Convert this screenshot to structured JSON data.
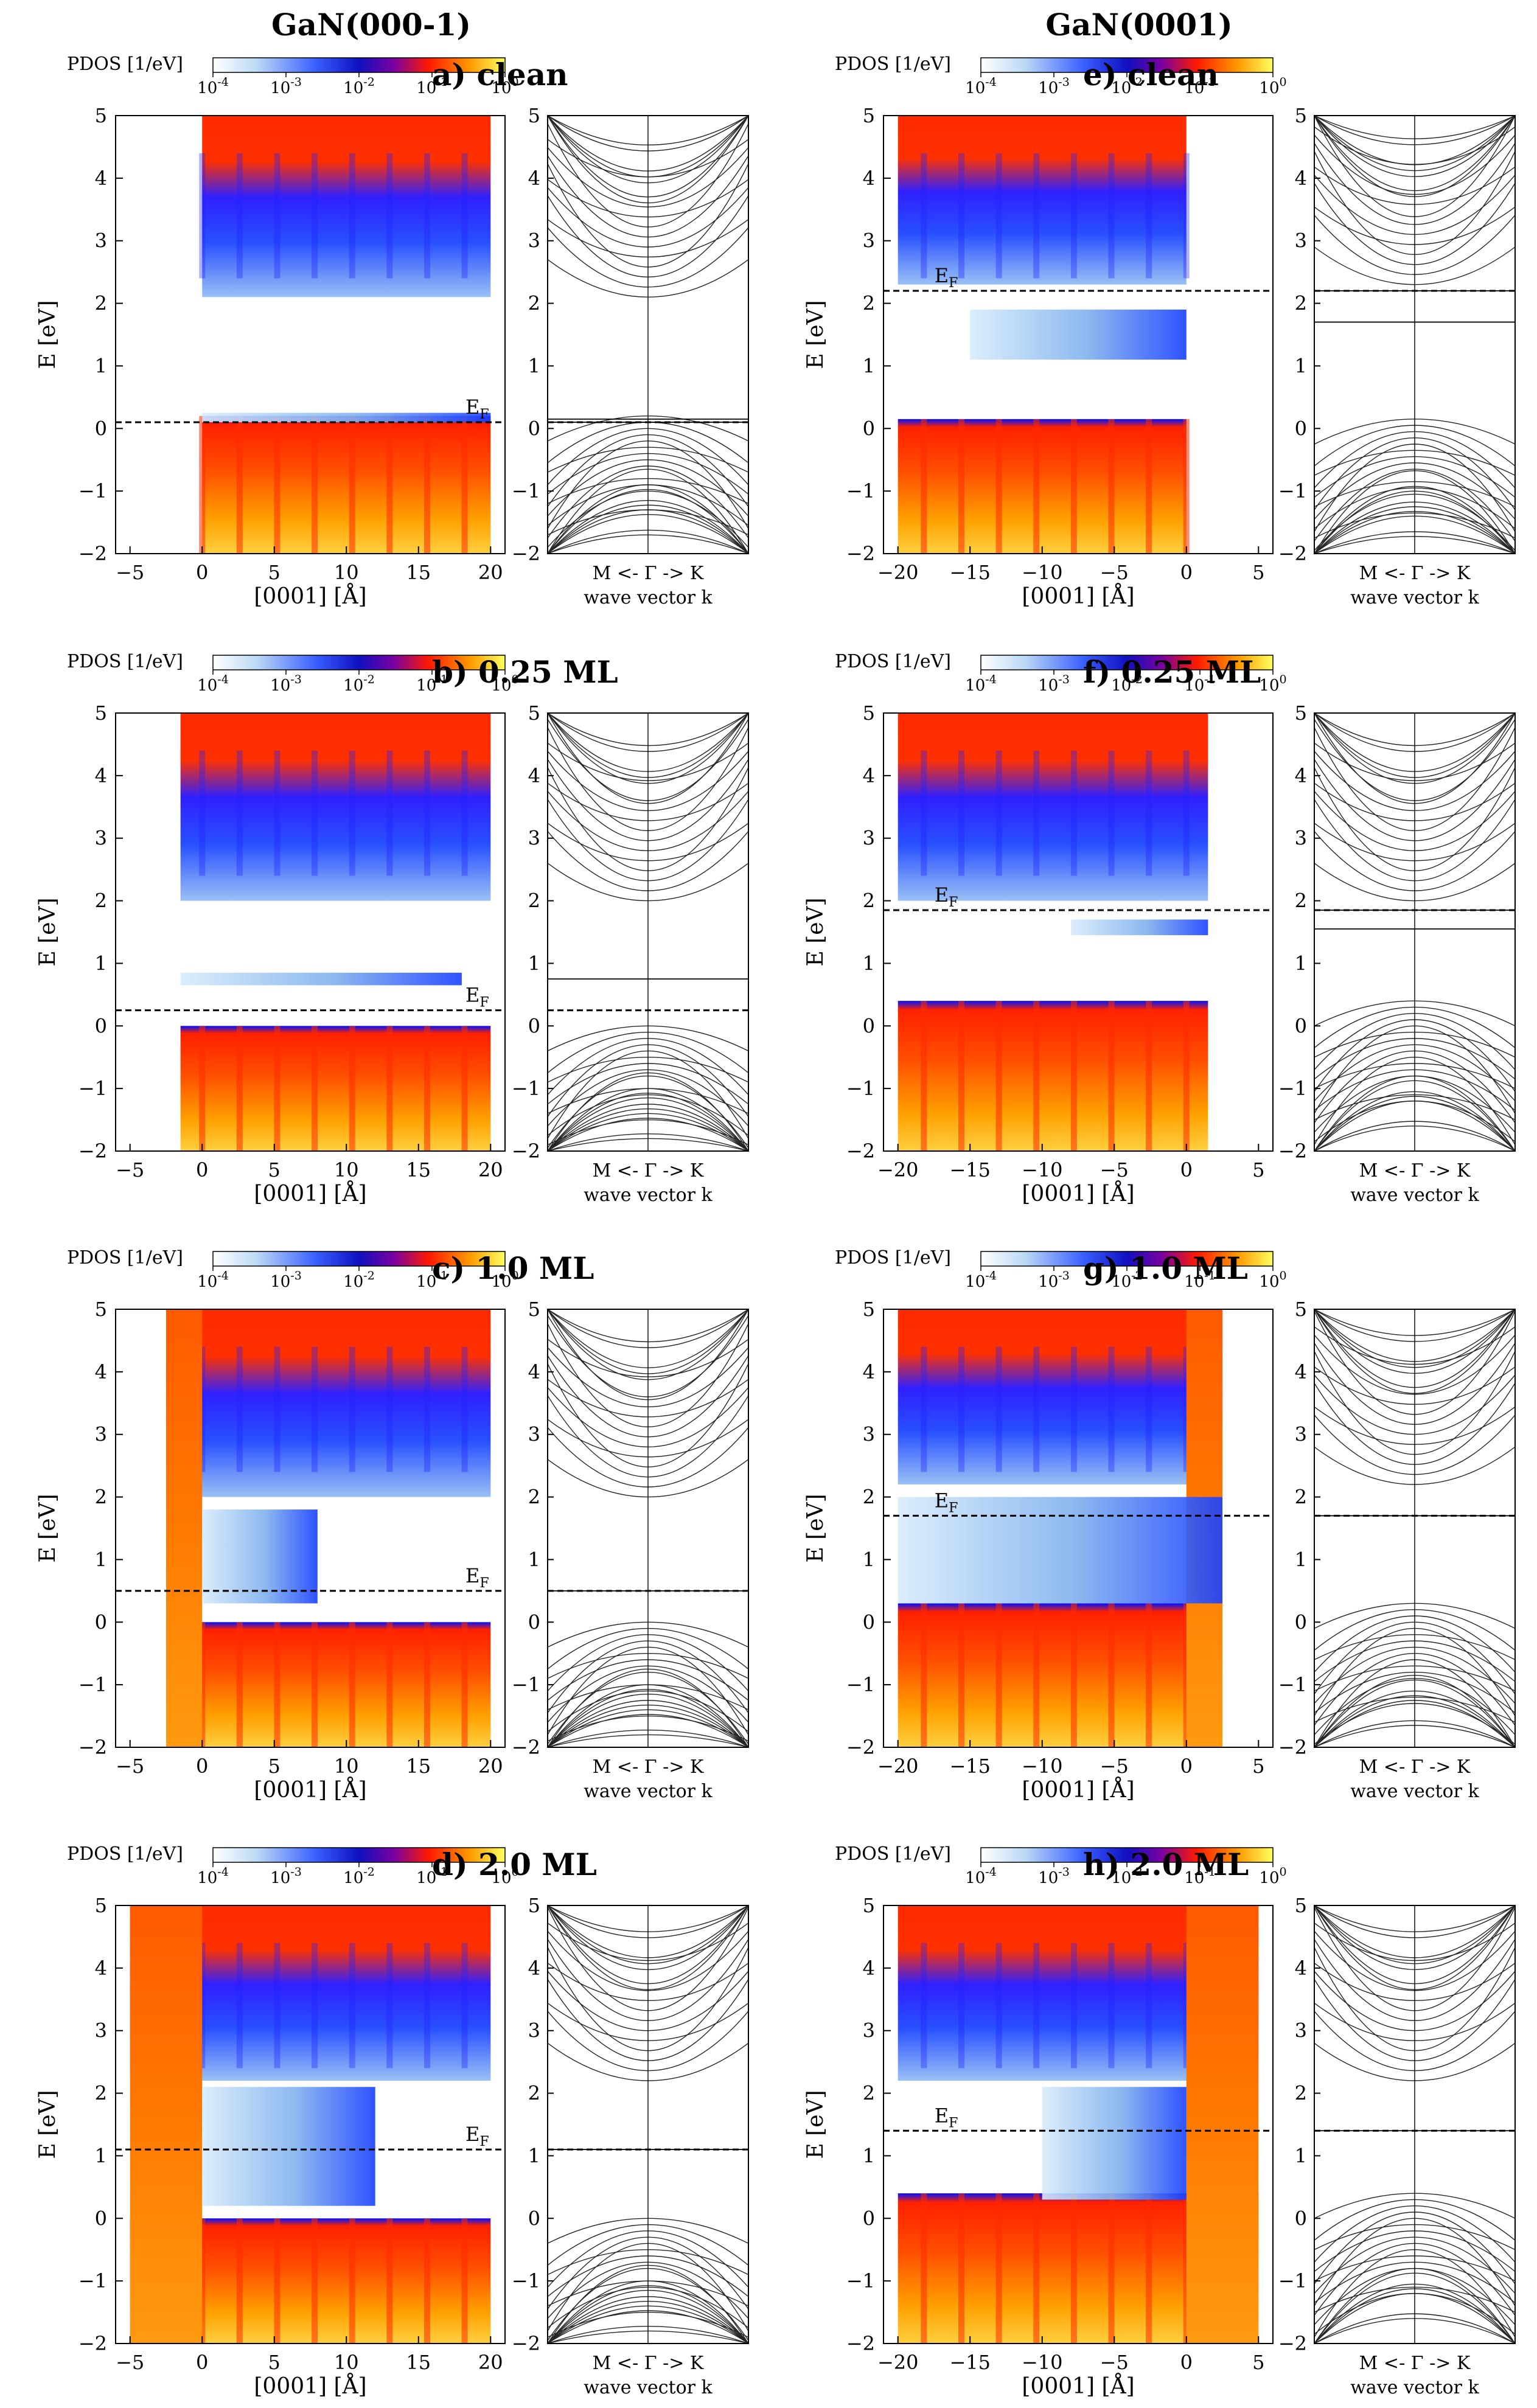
{
  "columns": [
    {
      "title": "GaN(000-1)"
    },
    {
      "title": "GaN(0001)"
    }
  ],
  "shared_labels": {
    "pdos_label": "PDOS [1/eV]",
    "colorbar_ticks": [
      "10-4",
      "10-3",
      "10-2",
      "10-1",
      "100"
    ],
    "energy_axis_label": "E [eV]",
    "position_axis_label": "[0001] [Å]",
    "kpath_label": "M <- Γ -> K",
    "wave_vector_label": "wave vector k",
    "fermi_label": "E",
    "fermi_subscript": "F"
  },
  "colors": {
    "colormap": [
      "#ffffff",
      "#1a1aff",
      "#0000c8",
      "#ff2000",
      "#ff9000",
      "#ffff60"
    ],
    "fermi_line": "#000000",
    "band_lines": "#000000"
  },
  "chart_data": [
    {
      "panel": "a",
      "title": "a) clean",
      "column": "GaN(000-1)",
      "type": "heatmap",
      "xlabel": "[0001] [Å]",
      "ylabel": "E [eV]",
      "xlim": [
        -6,
        21
      ],
      "ylim": [
        -2,
        5
      ],
      "x_ticks": [
        -5,
        0,
        5,
        10,
        15,
        20
      ],
      "y_ticks": [
        -2,
        -1,
        0,
        1,
        2,
        3,
        4,
        5
      ],
      "colorbar": {
        "label": "PDOS [1/eV]",
        "range": [
          0.0001,
          1
        ],
        "scale": "log"
      },
      "fermi_level_eV": 0.1,
      "slab_x_range": [
        0,
        20
      ],
      "valence_band_max_eV": 0.2,
      "conduction_band_min_eV": 2.1,
      "gap_states": [
        {
          "x": [
            0,
            20
          ],
          "e": [
            0.1,
            0.25
          ]
        }
      ],
      "bands": {
        "kpath": "M <- Γ -> K",
        "xlabel": "wave vector k",
        "ylim": [
          -2,
          5
        ],
        "valence_top_eV": 0.2,
        "conduction_bottom_eV": 2.1,
        "flat_bands_eV": [
          0.1,
          0.15
        ]
      }
    },
    {
      "panel": "b",
      "title": "b) 0.25 ML",
      "column": "GaN(000-1)",
      "type": "heatmap",
      "xlabel": "[0001] [Å]",
      "ylabel": "E [eV]",
      "xlim": [
        -6,
        21
      ],
      "ylim": [
        -2,
        5
      ],
      "x_ticks": [
        -5,
        0,
        5,
        10,
        15,
        20
      ],
      "y_ticks": [
        -2,
        -1,
        0,
        1,
        2,
        3,
        4,
        5
      ],
      "colorbar": {
        "label": "PDOS [1/eV]",
        "range": [
          0.0001,
          1
        ],
        "scale": "log"
      },
      "fermi_level_eV": 0.25,
      "slab_x_range": [
        -1.5,
        20
      ],
      "valence_band_max_eV": 0.0,
      "conduction_band_min_eV": 2.0,
      "gap_states": [
        {
          "x": [
            -1.5,
            18
          ],
          "e": [
            0.65,
            0.85
          ]
        }
      ],
      "bands": {
        "kpath": "M <- Γ -> K",
        "xlabel": "wave vector k",
        "ylim": [
          -2,
          5
        ],
        "valence_top_eV": 0.0,
        "conduction_bottom_eV": 2.0,
        "flat_bands_eV": [
          0.75
        ]
      }
    },
    {
      "panel": "c",
      "title": "c) 1.0 ML",
      "column": "GaN(000-1)",
      "type": "heatmap",
      "xlabel": "[0001] [Å]",
      "ylabel": "E [eV]",
      "xlim": [
        -6,
        21
      ],
      "ylim": [
        -2,
        5
      ],
      "x_ticks": [
        -5,
        0,
        5,
        10,
        15,
        20
      ],
      "y_ticks": [
        -2,
        -1,
        0,
        1,
        2,
        3,
        4,
        5
      ],
      "colorbar": {
        "label": "PDOS [1/eV]",
        "range": [
          0.0001,
          1
        ],
        "scale": "log"
      },
      "fermi_level_eV": 0.5,
      "slab_x_range": [
        -2.5,
        20
      ],
      "metal_region_x": [
        -2.5,
        0
      ],
      "valence_band_max_eV": 0.0,
      "conduction_band_min_eV": 2.0,
      "gap_states": [
        {
          "x": [
            0,
            8
          ],
          "e": [
            0.3,
            1.8
          ]
        }
      ],
      "bands": {
        "kpath": "M <- Γ -> K",
        "xlabel": "wave vector k",
        "ylim": [
          -2,
          5
        ],
        "valence_top_eV": 0.0,
        "conduction_bottom_eV": 2.0,
        "flat_bands_eV": [
          0.5
        ]
      }
    },
    {
      "panel": "d",
      "title": "d) 2.0 ML",
      "column": "GaN(000-1)",
      "type": "heatmap",
      "xlabel": "[0001] [Å]",
      "ylabel": "E [eV]",
      "xlim": [
        -6,
        21
      ],
      "ylim": [
        -2,
        5
      ],
      "x_ticks": [
        -5,
        0,
        5,
        10,
        15,
        20
      ],
      "y_ticks": [
        -2,
        -1,
        0,
        1,
        2,
        3,
        4,
        5
      ],
      "colorbar": {
        "label": "PDOS [1/eV]",
        "range": [
          0.0001,
          1
        ],
        "scale": "log"
      },
      "fermi_level_eV": 1.1,
      "slab_x_range": [
        -5,
        20
      ],
      "metal_region_x": [
        -5,
        0
      ],
      "valence_band_max_eV": 0.0,
      "conduction_band_min_eV": 2.2,
      "gap_states": [
        {
          "x": [
            0,
            12
          ],
          "e": [
            0.2,
            2.1
          ]
        }
      ],
      "bands": {
        "kpath": "M <- Γ -> K",
        "xlabel": "wave vector k",
        "ylim": [
          -2,
          5
        ],
        "valence_top_eV": 0.0,
        "conduction_bottom_eV": 2.2,
        "flat_bands_eV": [
          1.1
        ]
      }
    },
    {
      "panel": "e",
      "title": "e) clean",
      "column": "GaN(0001)",
      "type": "heatmap",
      "xlabel": "[0001] [Å]",
      "ylabel": "E [eV]",
      "xlim": [
        -21,
        6
      ],
      "ylim": [
        -2,
        5
      ],
      "x_ticks": [
        -20,
        -15,
        -10,
        -5,
        0,
        5
      ],
      "y_ticks": [
        -2,
        -1,
        0,
        1,
        2,
        3,
        4,
        5
      ],
      "colorbar": {
        "label": "PDOS [1/eV]",
        "range": [
          0.0001,
          1
        ],
        "scale": "log"
      },
      "fermi_level_eV": 2.2,
      "slab_x_range": [
        -20,
        0
      ],
      "valence_band_max_eV": 0.15,
      "conduction_band_min_eV": 2.3,
      "gap_states": [
        {
          "x": [
            -15,
            0
          ],
          "e": [
            1.1,
            1.9
          ]
        }
      ],
      "bands": {
        "kpath": "M <- Γ -> K",
        "xlabel": "wave vector k",
        "ylim": [
          -2,
          5
        ],
        "valence_top_eV": 0.15,
        "conduction_bottom_eV": 2.3,
        "flat_bands_eV": [
          1.7,
          2.2
        ]
      }
    },
    {
      "panel": "f",
      "title": "f) 0.25 ML",
      "column": "GaN(0001)",
      "type": "heatmap",
      "xlabel": "[0001] [Å]",
      "ylabel": "E [eV]",
      "xlim": [
        -21,
        6
      ],
      "ylim": [
        -2,
        5
      ],
      "x_ticks": [
        -20,
        -15,
        -10,
        -5,
        0,
        5
      ],
      "y_ticks": [
        -2,
        -1,
        0,
        1,
        2,
        3,
        4,
        5
      ],
      "colorbar": {
        "label": "PDOS [1/eV]",
        "range": [
          0.0001,
          1
        ],
        "scale": "log"
      },
      "fermi_level_eV": 1.85,
      "slab_x_range": [
        -20,
        1.5
      ],
      "valence_band_max_eV": 0.4,
      "conduction_band_min_eV": 2.0,
      "gap_states": [
        {
          "x": [
            -8,
            1.5
          ],
          "e": [
            1.45,
            1.7
          ]
        }
      ],
      "bands": {
        "kpath": "M <- Γ -> K",
        "xlabel": "wave vector k",
        "ylim": [
          -2,
          5
        ],
        "valence_top_eV": 0.4,
        "conduction_bottom_eV": 2.0,
        "flat_bands_eV": [
          1.55,
          1.85
        ]
      }
    },
    {
      "panel": "g",
      "title": "g) 1.0 ML",
      "column": "GaN(0001)",
      "type": "heatmap",
      "xlabel": "[0001] [Å]",
      "ylabel": "E [eV]",
      "xlim": [
        -21,
        6
      ],
      "ylim": [
        -2,
        5
      ],
      "x_ticks": [
        -20,
        -15,
        -10,
        -5,
        0,
        5
      ],
      "y_ticks": [
        -2,
        -1,
        0,
        1,
        2,
        3,
        4,
        5
      ],
      "colorbar": {
        "label": "PDOS [1/eV]",
        "range": [
          0.0001,
          1
        ],
        "scale": "log"
      },
      "fermi_level_eV": 1.7,
      "slab_x_range": [
        -20,
        2.5
      ],
      "metal_region_x": [
        0,
        2.5
      ],
      "valence_band_max_eV": 0.3,
      "conduction_band_min_eV": 2.2,
      "gap_states": [
        {
          "x": [
            -20,
            2.5
          ],
          "e": [
            0.3,
            2.0
          ]
        }
      ],
      "bands": {
        "kpath": "M <- Γ -> K",
        "xlabel": "wave vector k",
        "ylim": [
          -2,
          5
        ],
        "valence_top_eV": 0.3,
        "conduction_bottom_eV": 2.2,
        "flat_bands_eV": [
          1.7
        ]
      }
    },
    {
      "panel": "h",
      "title": "h) 2.0 ML",
      "column": "GaN(0001)",
      "type": "heatmap",
      "xlabel": "[0001] [Å]",
      "ylabel": "E [eV]",
      "xlim": [
        -21,
        6
      ],
      "ylim": [
        -2,
        5
      ],
      "x_ticks": [
        -20,
        -15,
        -10,
        -5,
        0,
        5
      ],
      "y_ticks": [
        -2,
        -1,
        0,
        1,
        2,
        3,
        4,
        5
      ],
      "colorbar": {
        "label": "PDOS [1/eV]",
        "range": [
          0.0001,
          1
        ],
        "scale": "log"
      },
      "fermi_level_eV": 1.4,
      "slab_x_range": [
        -20,
        5
      ],
      "metal_region_x": [
        0,
        5
      ],
      "valence_band_max_eV": 0.4,
      "conduction_band_min_eV": 2.2,
      "gap_states": [
        {
          "x": [
            -10,
            0
          ],
          "e": [
            0.3,
            2.1
          ]
        }
      ],
      "bands": {
        "kpath": "M <- Γ -> K",
        "xlabel": "wave vector k",
        "ylim": [
          -2,
          5
        ],
        "valence_top_eV": 0.4,
        "conduction_bottom_eV": 2.2,
        "flat_bands_eV": [
          1.4
        ]
      }
    }
  ]
}
